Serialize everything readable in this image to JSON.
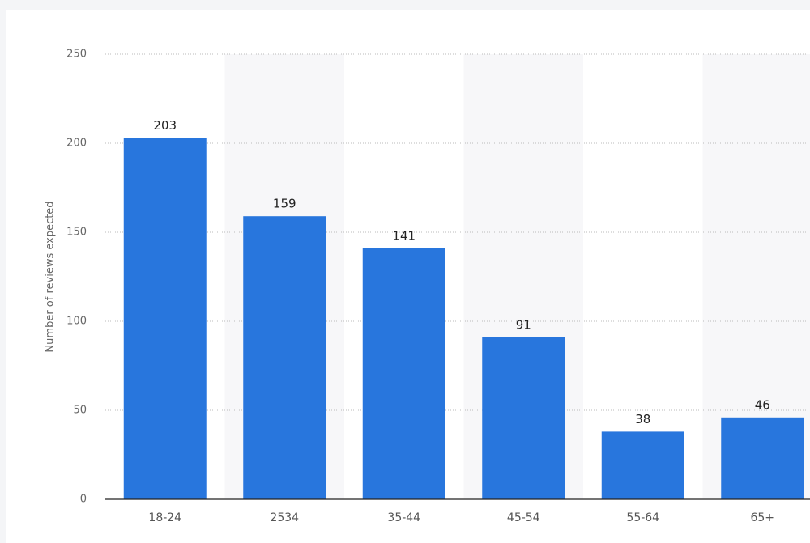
{
  "chart_data": {
    "type": "bar",
    "y_label": "Number of reviews expected",
    "categories": [
      "18-24",
      "2534",
      "35-44",
      "45-54",
      "55-64",
      "65+"
    ],
    "values": [
      203,
      159,
      141,
      91,
      38,
      46
    ],
    "color": "#2876dd",
    "ylim": [
      0,
      250
    ],
    "yticks": [
      0,
      50,
      100,
      150,
      200,
      250
    ],
    "grid": true
  }
}
